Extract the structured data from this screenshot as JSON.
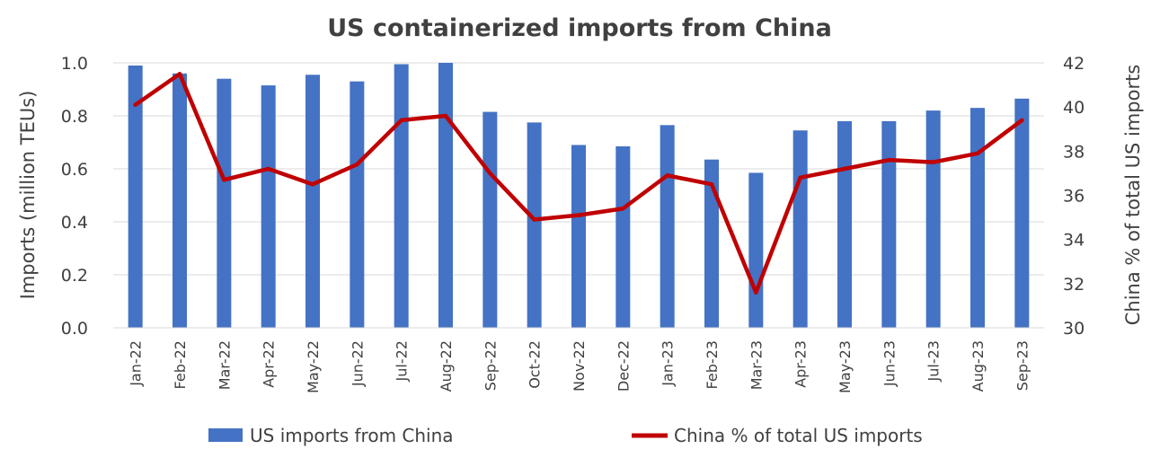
{
  "chart_data": {
    "type": "bar",
    "title": "US containerized imports from China",
    "ylabel": "Imports (million TEUs)",
    "y2label": "China % of total US imports",
    "ylim": [
      0,
      1.0
    ],
    "y2lim": [
      30,
      42
    ],
    "yticks": [
      "0.0",
      "0.2",
      "0.4",
      "0.6",
      "0.8",
      "1.0"
    ],
    "y2ticks": [
      "30",
      "32",
      "34",
      "36",
      "38",
      "40",
      "42"
    ],
    "grid": true,
    "legend_position": "bottom",
    "categories": [
      "Jan-22",
      "Feb-22",
      "Mar-22",
      "Apr-22",
      "May-22",
      "Jun-22",
      "Jul-22",
      "Aug-22",
      "Sep-22",
      "Oct-22",
      "Nov-22",
      "Dec-22",
      "Jan-23",
      "Feb-23",
      "Mar-23",
      "Apr-23",
      "May-23",
      "Jun-23",
      "Jul-23",
      "Aug-23",
      "Sep-23"
    ],
    "series": [
      {
        "name": "US imports from China",
        "type": "bar",
        "axis": "left",
        "color": "#4472C4",
        "values": [
          0.99,
          0.96,
          0.94,
          0.915,
          0.955,
          0.93,
          0.995,
          1.0,
          0.815,
          0.775,
          0.69,
          0.685,
          0.765,
          0.635,
          0.585,
          0.745,
          0.78,
          0.78,
          0.82,
          0.83,
          0.865
        ]
      },
      {
        "name": "China % of total US imports",
        "type": "line",
        "axis": "right",
        "color": "#C00000",
        "values": [
          40.1,
          41.5,
          36.7,
          37.2,
          36.5,
          37.4,
          39.4,
          39.6,
          37.0,
          34.9,
          35.1,
          35.4,
          36.9,
          36.5,
          31.6,
          36.8,
          37.2,
          37.6,
          37.5,
          37.9,
          39.4
        ]
      }
    ]
  }
}
